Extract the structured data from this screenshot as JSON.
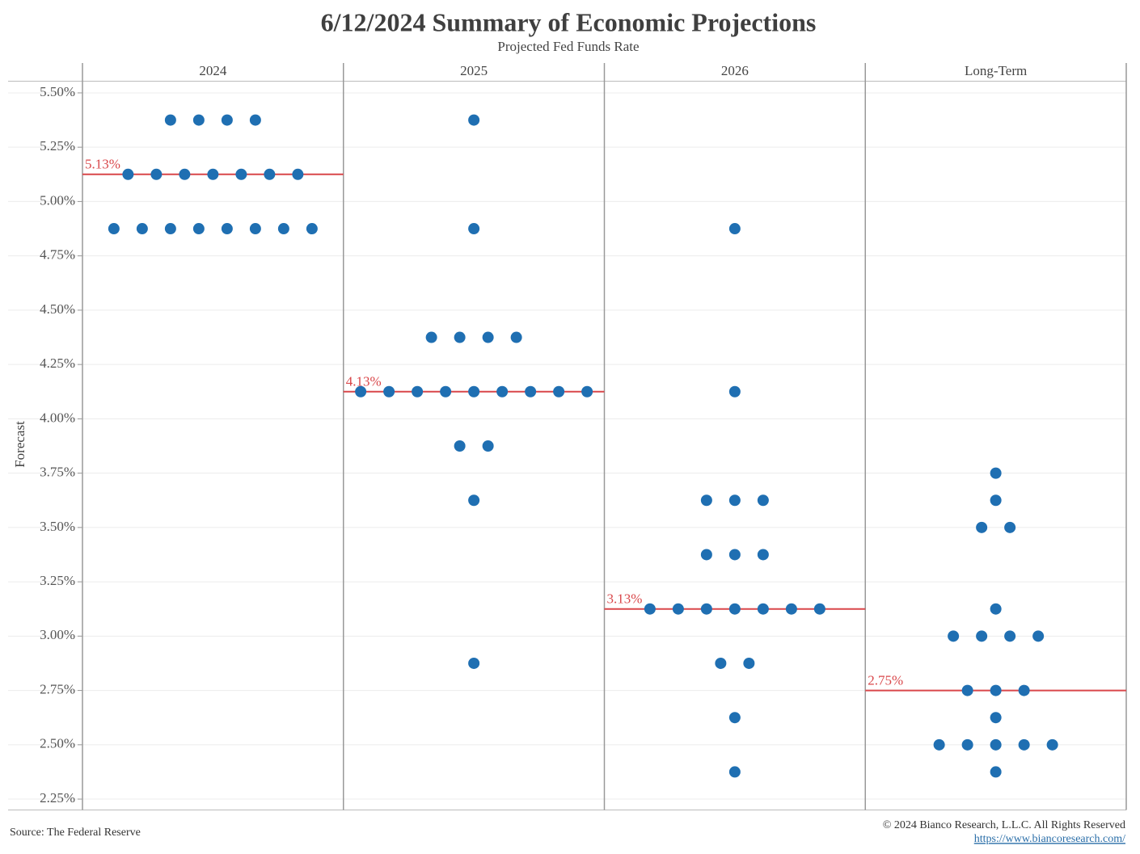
{
  "chart_data": {
    "type": "dot",
    "title": "6/12/2024 Summary of Economic Projections",
    "subtitle": "Projected Fed Funds Rate",
    "y_label": "Forecast",
    "dot_color": "#1f6fb2",
    "median_color": "#d9474a",
    "grid": true,
    "ylim": [
      2.2,
      5.55
    ],
    "yticks": [
      {
        "value": 5.5,
        "label": "5.50%"
      },
      {
        "value": 5.25,
        "label": "5.25%"
      },
      {
        "value": 5.0,
        "label": "5.00%"
      },
      {
        "value": 4.75,
        "label": "4.75%"
      },
      {
        "value": 4.5,
        "label": "4.50%"
      },
      {
        "value": 4.25,
        "label": "4.25%"
      },
      {
        "value": 4.0,
        "label": "4.00%"
      },
      {
        "value": 3.75,
        "label": "3.75%"
      },
      {
        "value": 3.5,
        "label": "3.50%"
      },
      {
        "value": 3.25,
        "label": "3.25%"
      },
      {
        "value": 3.0,
        "label": "3.00%"
      },
      {
        "value": 2.75,
        "label": "2.75%"
      },
      {
        "value": 2.5,
        "label": "2.50%"
      },
      {
        "value": 2.25,
        "label": "2.25%"
      }
    ],
    "panels": [
      {
        "name": "2024",
        "median": 5.125,
        "median_label": "5.13%",
        "dots": [
          5.375,
          5.375,
          5.375,
          5.375,
          5.125,
          5.125,
          5.125,
          5.125,
          5.125,
          5.125,
          5.125,
          4.875,
          4.875,
          4.875,
          4.875,
          4.875,
          4.875,
          4.875,
          4.875
        ]
      },
      {
        "name": "2025",
        "median": 4.125,
        "median_label": "4.13%",
        "dots": [
          5.375,
          4.875,
          4.375,
          4.375,
          4.375,
          4.375,
          4.125,
          4.125,
          4.125,
          4.125,
          4.125,
          4.125,
          4.125,
          4.125,
          4.125,
          3.875,
          3.875,
          3.625,
          2.875
        ]
      },
      {
        "name": "2026",
        "median": 3.125,
        "median_label": "3.13%",
        "dots": [
          4.875,
          4.125,
          3.625,
          3.625,
          3.625,
          3.375,
          3.375,
          3.375,
          3.125,
          3.125,
          3.125,
          3.125,
          3.125,
          3.125,
          3.125,
          2.875,
          2.875,
          2.625,
          2.375
        ]
      },
      {
        "name": "Long-Term",
        "median": 2.75,
        "median_label": "2.75%",
        "dots": [
          3.75,
          3.625,
          3.5,
          3.5,
          3.125,
          3.0,
          3.0,
          3.0,
          3.0,
          2.75,
          2.75,
          2.75,
          2.625,
          2.5,
          2.5,
          2.5,
          2.5,
          2.5,
          2.375
        ]
      }
    ],
    "source": "Source: The Federal Reserve",
    "copyright": "© 2024 Bianco Research, L.L.C. All Rights Reserved",
    "url": "https://www.biancoresearch.com/"
  }
}
